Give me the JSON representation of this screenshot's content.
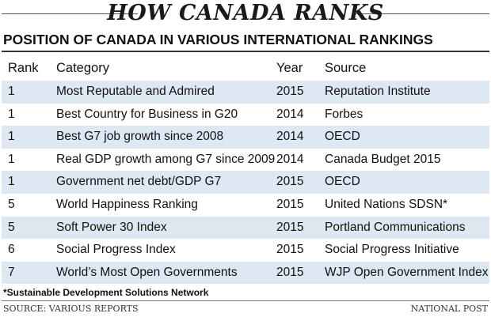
{
  "header": {
    "title": "HOW CANADA RANKS",
    "subtitle": "POSITION OF CANADA IN VARIOUS INTERNATIONAL RANKINGS"
  },
  "chart_data": {
    "type": "table",
    "title": "POSITION OF CANADA IN VARIOUS INTERNATIONAL RANKINGS",
    "columns": [
      "Rank",
      "Category",
      "Year",
      "Source"
    ],
    "rows": [
      [
        "1",
        "Most Reputable and Admired",
        "2015",
        "Reputation Institute"
      ],
      [
        "1",
        "Best Country for Business in G20",
        "2014",
        "Forbes"
      ],
      [
        "1",
        "Best G7 job growth since 2008",
        "2014",
        "OECD"
      ],
      [
        "1",
        "Real GDP growth among G7 since 2009",
        "2014",
        "Canada Budget 2015"
      ],
      [
        "1",
        "Government net debt/GDP G7",
        "2015",
        "OECD"
      ],
      [
        "5",
        "World Happiness Ranking",
        "2015",
        "United Nations SDSN*"
      ],
      [
        "5",
        "Soft Power 30 Index",
        "2015",
        "Portland Communications"
      ],
      [
        "6",
        "Social Progress Index",
        "2015",
        "Social Progress Initiative"
      ],
      [
        "7",
        "World’s Most Open Governments",
        "2015",
        "WJP Open Government Index"
      ]
    ],
    "shading_color": "#dde8f3"
  },
  "footer": {
    "footnote": "*Sustainable Development Solutions Network",
    "source": "SOURCE: VARIOUS REPORTS",
    "credit": "NATIONAL POST"
  }
}
